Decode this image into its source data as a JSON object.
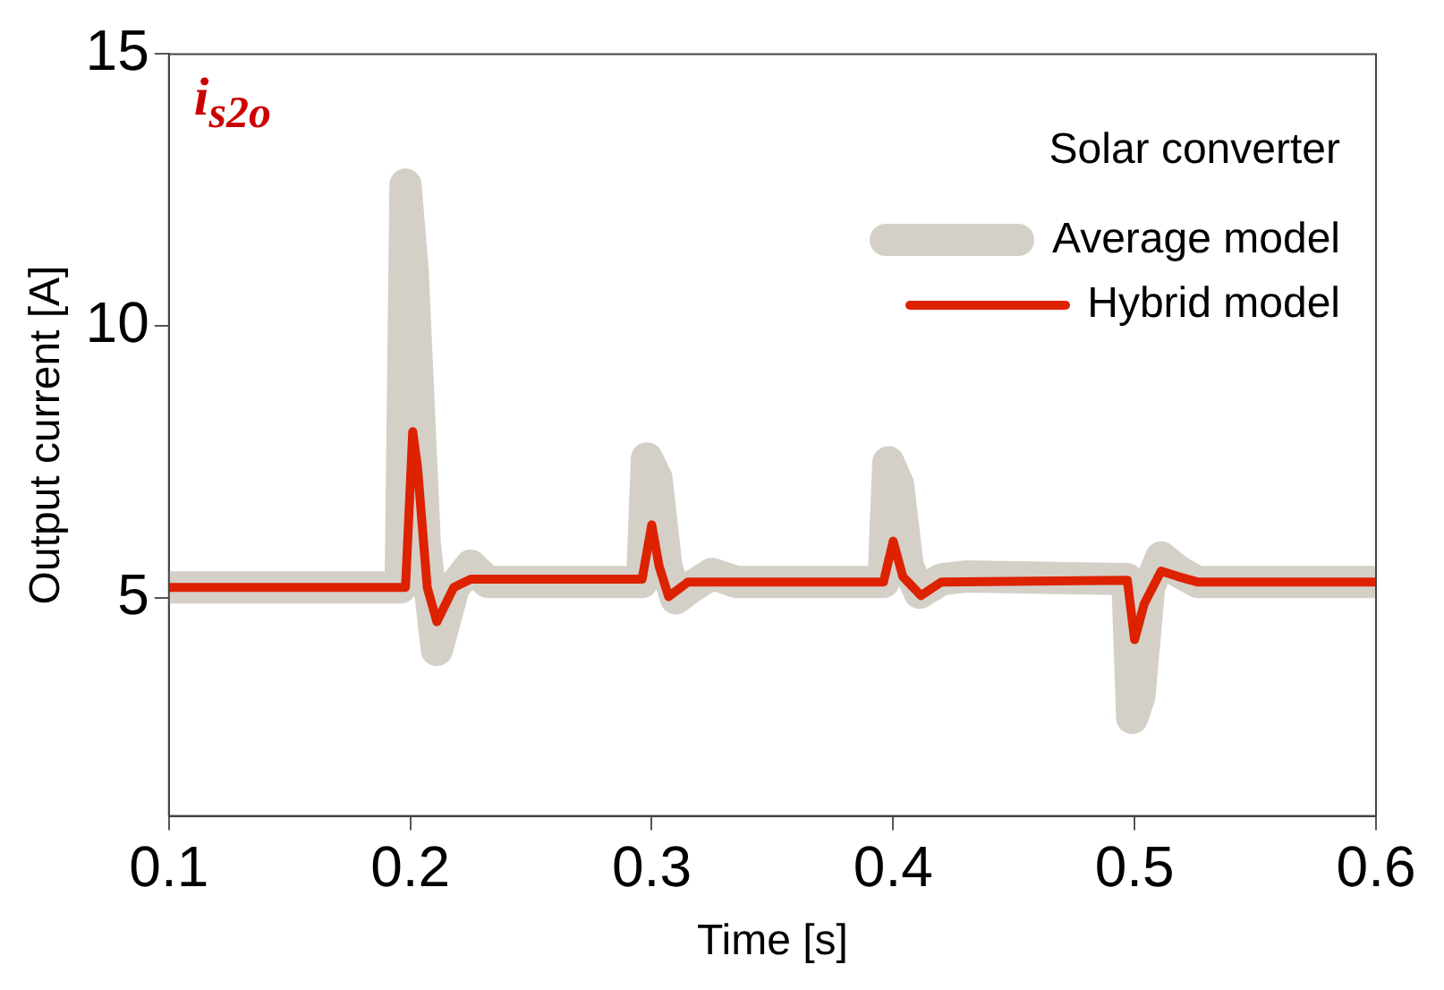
{
  "chart_data": {
    "type": "line",
    "xlabel": "Time [s]",
    "ylabel": "Output current [A]",
    "legend_title": "Solar converter",
    "legend": "top right",
    "grid": false,
    "marker": "none",
    "line_style": "solid",
    "annotations": [
      "i$_{s2o}$"
    ],
    "xlim": [
      0.1,
      0.6
    ],
    "xticks": [
      0.1,
      0.2,
      0.3,
      0.4,
      0.5,
      0.6
    ],
    "ylim": [
      1,
      15
    ],
    "yticks": [
      5,
      10,
      15
    ],
    "series": [
      {
        "name": "Average model",
        "color": "#d4d0c8",
        "x": [
          0.1,
          0.196,
          0.198,
          0.201,
          0.206,
          0.211,
          0.218,
          0.225,
          0.232,
          0.296,
          0.298,
          0.302,
          0.306,
          0.31,
          0.316,
          0.325,
          0.335,
          0.396,
          0.398,
          0.402,
          0.406,
          0.411,
          0.42,
          0.43,
          0.497,
          0.499,
          0.502,
          0.506,
          0.511,
          0.518,
          0.526,
          0.6
        ],
        "values": [
          5.2,
          5.2,
          12.6,
          11,
          6,
          4.05,
          5.2,
          5.6,
          5.3,
          5.3,
          7.57,
          7.2,
          5.6,
          5,
          5.2,
          5.45,
          5.3,
          5.3,
          7.5,
          7.1,
          5.6,
          5.1,
          5.35,
          5.4,
          5.35,
          2.8,
          3.2,
          5.2,
          5.75,
          5.5,
          5.3,
          5.3
        ]
      },
      {
        "name": "Hybrid model",
        "color": "#dd2200",
        "x": [
          0.1,
          0.198,
          0.201,
          0.203,
          0.207,
          0.211,
          0.218,
          0.225,
          0.296,
          0.3,
          0.303,
          0.307,
          0.315,
          0.396,
          0.4,
          0.404,
          0.4115,
          0.42,
          0.497,
          0.5,
          0.504,
          0.511,
          0.518,
          0.526,
          0.6
        ],
        "values": [
          5.2,
          5.2,
          8.06,
          7.4,
          5.2,
          4.57,
          5.2,
          5.35,
          5.35,
          6.35,
          5.6,
          5.03,
          5.3,
          5.3,
          6.05,
          5.4,
          5.05,
          5.3,
          5.33,
          4.24,
          4.9,
          5.5,
          5.4,
          5.3,
          5.3
        ]
      }
    ]
  }
}
